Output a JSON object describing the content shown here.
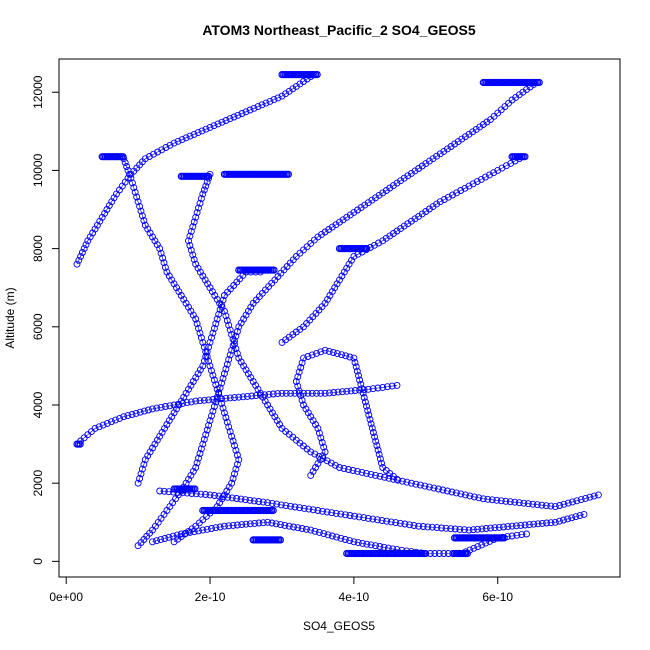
{
  "chart_data": {
    "type": "scatter",
    "title": "ATOM3 Northeast_Pacific_2 SO4_GEOS5",
    "xlabel": "SO4_GEOS5",
    "ylabel": "Altitude (m)",
    "xlim": [
      -1e-11,
      7.7e-10
    ],
    "ylim": [
      -400,
      12850
    ],
    "x_ticks": [
      0,
      2e-10,
      4e-10,
      6e-10
    ],
    "x_tick_labels": [
      "0e+00",
      "2e-10",
      "4e-10",
      "6e-10"
    ],
    "y_ticks": [
      0,
      2000,
      4000,
      6000,
      8000,
      10000,
      12000
    ],
    "y_tick_labels": [
      "0",
      "2000",
      "4000",
      "6000",
      "8000",
      "10000",
      "12000"
    ],
    "grid": false,
    "marker": "open-circle",
    "color": "#0000ff",
    "series": [
      {
        "profile": "A",
        "points": [
          [
            1e-10,
            400
          ],
          [
            1.2e-10,
            800
          ],
          [
            1.4e-10,
            1300
          ],
          [
            1.6e-10,
            1800
          ],
          [
            1.8e-10,
            2400
          ],
          [
            1.9e-10,
            3000
          ],
          [
            2e-10,
            3600
          ],
          [
            2.1e-10,
            4200
          ],
          [
            2.2e-10,
            4800
          ],
          [
            2.3e-10,
            5400
          ],
          [
            2.4e-10,
            6000
          ],
          [
            2.6e-10,
            6600
          ],
          [
            2.9e-10,
            7200
          ],
          [
            3.2e-10,
            7800
          ],
          [
            3.5e-10,
            8300
          ],
          [
            3.9e-10,
            8800
          ],
          [
            4.3e-10,
            9300
          ],
          [
            4.7e-10,
            9800
          ],
          [
            5.1e-10,
            10300
          ],
          [
            5.5e-10,
            10800
          ],
          [
            5.9e-10,
            11300
          ],
          [
            6.2e-10,
            11800
          ],
          [
            6.5e-10,
            12200
          ]
        ]
      },
      {
        "profile": "B",
        "points": [
          [
            8e-11,
            10300
          ],
          [
            9e-11,
            9800
          ],
          [
            1e-10,
            9200
          ],
          [
            1.1e-10,
            8600
          ],
          [
            1.3e-10,
            8000
          ],
          [
            1.4e-10,
            7400
          ],
          [
            1.6e-10,
            6800
          ],
          [
            1.8e-10,
            6200
          ],
          [
            1.9e-10,
            5600
          ],
          [
            2e-10,
            5000
          ],
          [
            2.1e-10,
            4400
          ],
          [
            2.2e-10,
            3800
          ],
          [
            2.3e-10,
            3200
          ],
          [
            2.4e-10,
            2600
          ],
          [
            2.3e-10,
            2000
          ],
          [
            2.1e-10,
            1400
          ],
          [
            1.8e-10,
            900
          ],
          [
            1.5e-10,
            500
          ]
        ]
      },
      {
        "profile": "C",
        "points": [
          [
            2e-10,
            9900
          ],
          [
            1.9e-10,
            9400
          ],
          [
            1.8e-10,
            8800
          ],
          [
            1.7e-10,
            8200
          ],
          [
            1.8e-10,
            7600
          ],
          [
            2e-10,
            7000
          ],
          [
            2.2e-10,
            6400
          ],
          [
            2.3e-10,
            5800
          ],
          [
            2.4e-10,
            5200
          ],
          [
            2.6e-10,
            4600
          ],
          [
            2.8e-10,
            4000
          ],
          [
            3e-10,
            3400
          ],
          [
            3.4e-10,
            2800
          ],
          [
            3.8e-10,
            2400
          ],
          [
            4.3e-10,
            2200
          ],
          [
            4.8e-10,
            2000
          ],
          [
            5.3e-10,
            1800
          ],
          [
            5.8e-10,
            1600
          ],
          [
            6.3e-10,
            1500
          ],
          [
            6.8e-10,
            1400
          ],
          [
            7.4e-10,
            1700
          ]
        ]
      },
      {
        "profile": "D",
        "points": [
          [
            1.5e-11,
            7600
          ],
          [
            3e-11,
            8200
          ],
          [
            5e-11,
            8800
          ],
          [
            7e-11,
            9400
          ],
          [
            9e-11,
            9900
          ],
          [
            1.1e-10,
            10300
          ],
          [
            1.5e-10,
            10700
          ],
          [
            2e-10,
            11100
          ],
          [
            2.5e-10,
            11500
          ],
          [
            3e-10,
            11900
          ],
          [
            3.4e-10,
            12400
          ]
        ]
      },
      {
        "profile": "E",
        "points": [
          [
            1.5e-11,
            3000
          ],
          [
            4e-11,
            3400
          ],
          [
            8e-11,
            3700
          ],
          [
            1.2e-10,
            3900
          ],
          [
            1.8e-10,
            4100
          ],
          [
            2.4e-10,
            4200
          ],
          [
            3e-10,
            4300
          ],
          [
            3.6e-10,
            4300
          ],
          [
            4.2e-10,
            4400
          ],
          [
            4.6e-10,
            4500
          ]
        ]
      },
      {
        "profile": "F",
        "points": [
          [
            3e-10,
            5600
          ],
          [
            3.3e-10,
            6000
          ],
          [
            3.6e-10,
            6600
          ],
          [
            3.8e-10,
            7200
          ],
          [
            4e-10,
            7800
          ],
          [
            4.4e-10,
            8200
          ],
          [
            4.8e-10,
            8700
          ],
          [
            5.2e-10,
            9200
          ],
          [
            5.6e-10,
            9600
          ],
          [
            6e-10,
            10000
          ],
          [
            6.3e-10,
            10300
          ]
        ]
      },
      {
        "profile": "G",
        "points": [
          [
            1.2e-10,
            500
          ],
          [
            1.6e-10,
            700
          ],
          [
            2.2e-10,
            900
          ],
          [
            2.8e-10,
            1000
          ],
          [
            3.4e-10,
            800
          ],
          [
            4e-10,
            500
          ],
          [
            4.6e-10,
            300
          ],
          [
            5e-10,
            200
          ],
          [
            5.5e-10,
            200
          ],
          [
            6e-10,
            600
          ],
          [
            6.4e-10,
            700
          ]
        ]
      },
      {
        "profile": "H",
        "points": [
          [
            1e-10,
            2000
          ],
          [
            1.1e-10,
            2600
          ],
          [
            1.3e-10,
            3200
          ],
          [
            1.5e-10,
            3800
          ],
          [
            1.7e-10,
            4400
          ],
          [
            1.9e-10,
            5000
          ],
          [
            2e-10,
            5600
          ],
          [
            2.1e-10,
            6200
          ],
          [
            2.2e-10,
            6800
          ],
          [
            2.5e-10,
            7400
          ],
          [
            2.7e-10,
            7400
          ]
        ]
      },
      {
        "profile": "I",
        "points": [
          [
            3.4e-10,
            2200
          ],
          [
            3.6e-10,
            2800
          ],
          [
            3.5e-10,
            3400
          ],
          [
            3.3e-10,
            4000
          ],
          [
            3.2e-10,
            4600
          ],
          [
            3.3e-10,
            5200
          ],
          [
            3.6e-10,
            5400
          ],
          [
            4e-10,
            5200
          ],
          [
            4.4e-10,
            2400
          ],
          [
            4.6e-10,
            2100
          ]
        ]
      },
      {
        "profile": "J",
        "points": [
          [
            1.3e-10,
            1800
          ],
          [
            2e-10,
            1700
          ],
          [
            2.8e-10,
            1500
          ],
          [
            3.5e-10,
            1300
          ],
          [
            4.2e-10,
            1100
          ],
          [
            4.9e-10,
            900
          ],
          [
            5.6e-10,
            800
          ],
          [
            6.2e-10,
            900
          ],
          [
            6.8e-10,
            1000
          ],
          [
            7.2e-10,
            1200
          ]
        ]
      }
    ],
    "dense_segments": [
      {
        "x": [
          5e-11,
          8e-11
        ],
        "y": 10350
      },
      {
        "x": [
          1.6e-10,
          2e-10
        ],
        "y": 9850
      },
      {
        "x": [
          2.2e-10,
          3.1e-10
        ],
        "y": 9900
      },
      {
        "x": [
          3e-10,
          3.5e-10
        ],
        "y": 12450
      },
      {
        "x": [
          5.8e-10,
          6.6e-10
        ],
        "y": 12250
      },
      {
        "x": [
          6.2e-10,
          6.4e-10
        ],
        "y": 10350
      },
      {
        "x": [
          3.8e-10,
          4.2e-10
        ],
        "y": 8000
      },
      {
        "x": [
          2.4e-10,
          2.9e-10
        ],
        "y": 7450
      },
      {
        "x": [
          1.5e-10,
          1.8e-10
        ],
        "y": 1850
      },
      {
        "x": [
          1.9e-10,
          2.9e-10
        ],
        "y": 1300
      },
      {
        "x": [
          3.9e-10,
          5e-10
        ],
        "y": 200
      },
      {
        "x": [
          5.4e-10,
          6.1e-10
        ],
        "y": 600
      },
      {
        "x": [
          5.4e-10,
          5.6e-10
        ],
        "y": 200
      },
      {
        "x": [
          2.6e-10,
          3e-10
        ],
        "y": 550
      },
      {
        "x": [
          1.5e-11,
          2e-11
        ],
        "y": 3000
      }
    ]
  }
}
